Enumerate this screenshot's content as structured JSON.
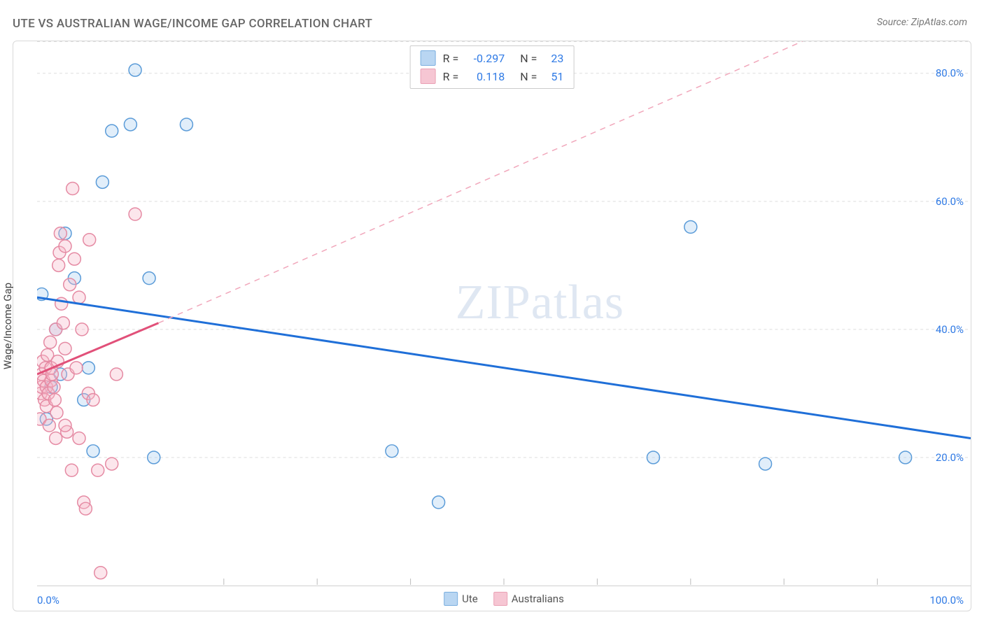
{
  "title": "UTE VS AUSTRALIAN WAGE/INCOME GAP CORRELATION CHART",
  "source": "Source: ZipAtlas.com",
  "watermark_left": "ZIP",
  "watermark_right": "atlas",
  "chart": {
    "type": "scatter",
    "background_color": "#ffffff",
    "border_color": "#d9d9d9",
    "grid_color": "#dddddd",
    "axis_label_color": "#444444",
    "tick_label_color": "#2f7ae5",
    "yaxis_label": "Wage/Income Gap",
    "xlim": [
      0,
      100
    ],
    "ylim": [
      0,
      85
    ],
    "xaxis_min_label": "0.0%",
    "xaxis_max_label": "100.0%",
    "y_grid_values": [
      20,
      40,
      60,
      80
    ],
    "y_grid_labels": [
      "20.0%",
      "40.0%",
      "60.0%",
      "80.0%"
    ],
    "x_minor_ticks": [
      20,
      30,
      40,
      50,
      60,
      70,
      80,
      90
    ],
    "marker_radius": 9,
    "marker_stroke_width": 1.5,
    "marker_fill_opacity": 0.35,
    "series": [
      {
        "name": "Ute",
        "stroke": "#5a9bd8",
        "fill": "#a8cdf0",
        "stats": {
          "R": "-0.297",
          "N": "23"
        },
        "trend": {
          "x1": 0,
          "y1": 45,
          "x2": 100,
          "y2": 23,
          "stroke": "#1f6fd8",
          "width": 3,
          "dash": null
        },
        "points": [
          [
            0.5,
            45.5
          ],
          [
            1.0,
            26
          ],
          [
            1.5,
            31
          ],
          [
            2.0,
            40
          ],
          [
            2.5,
            33
          ],
          [
            3.0,
            55
          ],
          [
            4.0,
            48
          ],
          [
            5.0,
            29
          ],
          [
            5.5,
            34
          ],
          [
            6.0,
            21
          ],
          [
            7.0,
            63
          ],
          [
            8.0,
            71
          ],
          [
            10.0,
            72
          ],
          [
            10.5,
            80.5
          ],
          [
            12.0,
            48
          ],
          [
            12.5,
            20
          ],
          [
            16.0,
            72
          ],
          [
            38.0,
            21
          ],
          [
            43.0,
            13
          ],
          [
            66.0,
            20
          ],
          [
            70.0,
            56
          ],
          [
            78.0,
            19
          ],
          [
            93.0,
            20
          ]
        ]
      },
      {
        "name": "Australians",
        "stroke": "#e58aa3",
        "fill": "#f5b8c9",
        "stats": {
          "R": "0.118",
          "N": "51"
        },
        "trend_solid": {
          "x1": 0,
          "y1": 33,
          "x2": 13,
          "y2": 41,
          "stroke": "#e15079",
          "width": 3
        },
        "trend_dashed": {
          "x1": 13,
          "y1": 41,
          "x2": 82,
          "y2": 85,
          "stroke": "#f1a7bb",
          "width": 1.5,
          "dash": "8 7"
        },
        "points": [
          [
            0.3,
            26
          ],
          [
            0.4,
            30
          ],
          [
            0.5,
            31
          ],
          [
            0.5,
            33
          ],
          [
            0.6,
            35
          ],
          [
            0.7,
            32
          ],
          [
            0.8,
            29
          ],
          [
            0.9,
            34
          ],
          [
            1.0,
            28
          ],
          [
            1.0,
            31
          ],
          [
            1.1,
            36
          ],
          [
            1.2,
            30
          ],
          [
            1.3,
            25
          ],
          [
            1.4,
            38
          ],
          [
            1.5,
            32
          ],
          [
            1.5,
            34
          ],
          [
            1.6,
            33
          ],
          [
            1.8,
            31
          ],
          [
            1.9,
            29
          ],
          [
            2.0,
            40
          ],
          [
            2.0,
            23
          ],
          [
            2.1,
            27
          ],
          [
            2.2,
            35
          ],
          [
            2.3,
            50
          ],
          [
            2.4,
            52
          ],
          [
            2.5,
            55
          ],
          [
            2.6,
            44
          ],
          [
            2.8,
            41
          ],
          [
            3.0,
            53
          ],
          [
            3.0,
            37
          ],
          [
            3.2,
            24
          ],
          [
            3.3,
            33
          ],
          [
            3.5,
            47
          ],
          [
            3.7,
            18
          ],
          [
            3.8,
            62
          ],
          [
            4.0,
            51
          ],
          [
            4.2,
            34
          ],
          [
            4.5,
            23
          ],
          [
            4.8,
            40
          ],
          [
            5.0,
            13
          ],
          [
            5.2,
            12
          ],
          [
            5.5,
            30
          ],
          [
            5.6,
            54
          ],
          [
            6.0,
            29
          ],
          [
            6.5,
            18
          ],
          [
            6.8,
            2
          ],
          [
            8.0,
            19
          ],
          [
            8.5,
            33
          ],
          [
            10.5,
            58
          ],
          [
            3.0,
            25
          ],
          [
            4.5,
            45
          ]
        ]
      }
    ],
    "bottom_legend": [
      {
        "label": "Ute",
        "stroke": "#5a9bd8",
        "fill": "#a8cdf0"
      },
      {
        "label": "Australians",
        "stroke": "#e58aa3",
        "fill": "#f5b8c9"
      }
    ]
  }
}
